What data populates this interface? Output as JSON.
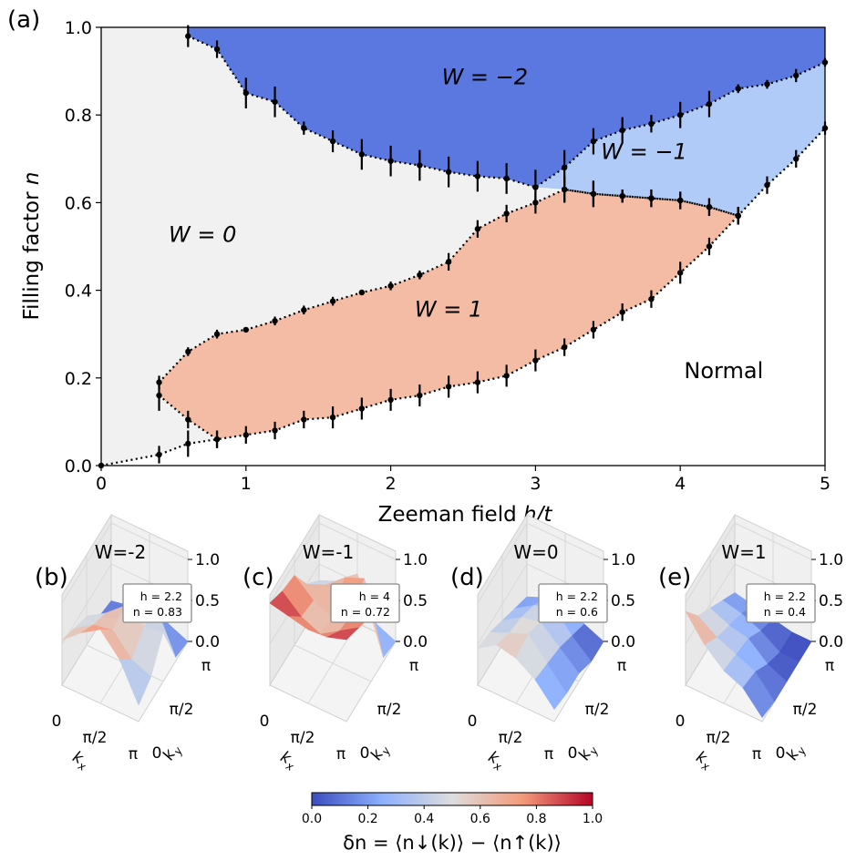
{
  "colors": {
    "w_minus2": "#5a78e0",
    "w_minus1": "#b0cbf8",
    "w_zero": "#f1f1f1",
    "w_one": "#f4bca4",
    "normal": "#ffffff",
    "cmap_low": "#3b4cc0",
    "cmap_mid": "#dddddd",
    "cmap_high": "#b40426"
  },
  "chart_data": [
    {
      "type": "scatter",
      "panel_label": "(a)",
      "xlabel": "Zeeman field h/t",
      "ylabel": "Filling factor n",
      "xlim": [
        0,
        5
      ],
      "ylim": [
        0.0,
        1.0
      ],
      "xticks": [
        "0",
        "1",
        "2",
        "3",
        "4",
        "5"
      ],
      "yticks": [
        "0.0",
        "0.2",
        "0.4",
        "0.6",
        "0.8",
        "1.0"
      ],
      "grid": false,
      "region_labels": [
        {
          "text": "W = −2",
          "x": 2.65,
          "y": 0.87
        },
        {
          "text": "W = −1",
          "x": 3.75,
          "y": 0.7
        },
        {
          "text": "W = 0",
          "x": 0.7,
          "y": 0.51
        },
        {
          "text": "W = 1",
          "x": 2.4,
          "y": 0.34
        },
        {
          "text": "Normal",
          "x": 4.3,
          "y": 0.2
        }
      ],
      "series": [
        {
          "x": [
            0.6,
            0.8,
            1.0,
            1.2,
            1.4,
            1.6,
            1.8,
            2.0,
            2.2,
            2.4,
            2.6,
            2.8,
            3.0,
            3.2,
            3.4,
            3.6,
            3.8,
            4.0,
            4.2,
            4.4,
            4.6,
            4.8,
            5.0
          ],
          "y": [
            0.98,
            0.95,
            0.85,
            0.83,
            0.77,
            0.74,
            0.71,
            0.695,
            0.685,
            0.67,
            0.66,
            0.655,
            0.635,
            0.68,
            0.74,
            0.765,
            0.78,
            0.8,
            0.825,
            0.86,
            0.87,
            0.89,
            0.92
          ],
          "err": [
            0.025,
            0.02,
            0.035,
            0.035,
            0.015,
            0.025,
            0.035,
            0.035,
            0.035,
            0.035,
            0.035,
            0.035,
            0.04,
            0.04,
            0.03,
            0.03,
            0.02,
            0.03,
            0.03,
            0.01,
            0.01,
            0.015,
            0.01
          ]
        },
        {
          "x": [
            3.2,
            3.4,
            3.6,
            3.8,
            4.0,
            4.2,
            4.4,
            4.6,
            4.8,
            5.0
          ],
          "y": [
            0.63,
            0.62,
            0.615,
            0.61,
            0.605,
            0.59,
            0.57,
            0.64,
            0.7,
            0.77
          ],
          "err": [
            0.03,
            0.03,
            0.015,
            0.02,
            0.02,
            0.02,
            0.02,
            0.02,
            0.02,
            0.015
          ]
        },
        {
          "x": [
            0.4,
            0.6,
            0.8,
            1.0,
            1.2,
            1.4,
            1.6,
            1.8,
            2.0,
            2.2,
            2.4,
            2.6,
            2.8,
            3.0,
            3.2,
            3.4,
            3.6,
            3.8,
            4.0,
            4.2,
            4.4
          ],
          "y": [
            0.19,
            0.26,
            0.3,
            0.31,
            0.33,
            0.355,
            0.375,
            0.395,
            0.41,
            0.435,
            0.465,
            0.54,
            0.575,
            0.6,
            0.63,
            0.62,
            0.615,
            0.61,
            0.605,
            0.59,
            0.57
          ],
          "err": [
            0.015,
            0.01,
            0.01,
            0.005,
            0.01,
            0.01,
            0.01,
            0.005,
            0.01,
            0.01,
            0.02,
            0.02,
            0.02,
            0.025,
            0.03,
            0.03,
            0.015,
            0.02,
            0.02,
            0.02,
            0.02
          ]
        },
        {
          "x": [
            0.4,
            0.6,
            0.8,
            1.0,
            1.2,
            1.4,
            1.6,
            1.8,
            2.0,
            2.2,
            2.4,
            2.6,
            2.8,
            3.0,
            3.2,
            3.4,
            3.6,
            3.8,
            4.0,
            4.2,
            4.4
          ],
          "y": [
            0.16,
            0.105,
            0.06,
            0.07,
            0.08,
            0.105,
            0.11,
            0.13,
            0.15,
            0.16,
            0.18,
            0.19,
            0.205,
            0.24,
            0.27,
            0.31,
            0.35,
            0.38,
            0.44,
            0.5,
            0.57
          ],
          "err": [
            0.035,
            0.02,
            0.02,
            0.02,
            0.02,
            0.02,
            0.025,
            0.025,
            0.025,
            0.025,
            0.025,
            0.025,
            0.025,
            0.025,
            0.02,
            0.02,
            0.02,
            0.02,
            0.025,
            0.02,
            0.02
          ]
        },
        {
          "x": [
            0.0,
            0.4,
            0.6,
            0.8
          ],
          "y": [
            0.0,
            0.025,
            0.05,
            0.06
          ],
          "err": [
            0.0,
            0.02,
            0.03,
            0.02
          ]
        }
      ]
    },
    {
      "type": "surface",
      "panel_label": "(b)",
      "title": "W=-2",
      "annotation": [
        "h = 2.2",
        "n = 0.83"
      ],
      "xlabel": "kx",
      "ylabel": "ky",
      "xticks": [
        "0",
        "π/2",
        "π"
      ],
      "yticks": [
        "0",
        "π/2",
        "π"
      ],
      "zticks": [
        "0.0",
        "0.5",
        "1.0"
      ],
      "zlim": [
        0.0,
        1.0
      ],
      "values": [
        [
          0.55,
          0.75,
          0.9,
          0.65,
          0.2
        ],
        [
          0.45,
          0.6,
          0.65,
          0.4,
          0.3
        ],
        [
          0.35,
          0.5,
          0.7,
          0.55,
          0.6
        ],
        [
          0.1,
          0.2,
          0.35,
          0.55,
          0.05
        ],
        [
          0.05,
          0.1,
          0.2,
          0.1,
          0.0
        ]
      ]
    },
    {
      "type": "surface",
      "panel_label": "(c)",
      "title": "W=-1",
      "annotation": [
        "h = 4",
        "n = 0.72"
      ],
      "xlabel": "kx",
      "ylabel": "ky",
      "xticks": [
        "0",
        "π/2",
        "π"
      ],
      "yticks": [
        "0",
        "π/2",
        "π"
      ],
      "zticks": [
        "0.0",
        "0.5",
        "1.0"
      ],
      "zlim": [
        0.0,
        1.0
      ],
      "values": [
        [
          1.0,
          0.95,
          0.9,
          0.92,
          1.0
        ],
        [
          0.9,
          0.7,
          0.6,
          0.75,
          0.9
        ],
        [
          0.85,
          0.65,
          0.55,
          0.7,
          0.8
        ],
        [
          0.5,
          0.6,
          0.8,
          0.9,
          0.05
        ],
        [
          0.3,
          0.4,
          0.6,
          0.1,
          0.0
        ]
      ]
    },
    {
      "type": "surface",
      "panel_label": "(d)",
      "title": "W=0",
      "annotation": [
        "h = 2.2",
        "n = 0.6"
      ],
      "xlabel": "kx",
      "ylabel": "ky",
      "xticks": [
        "0",
        "π/2",
        "π"
      ],
      "yticks": [
        "0",
        "π/2",
        "π"
      ],
      "zticks": [
        "0.0",
        "0.5",
        "1.0"
      ],
      "zlim": [
        0.0,
        1.0
      ],
      "values": [
        [
          0.45,
          0.6,
          0.55,
          0.4,
          0.15
        ],
        [
          0.4,
          0.5,
          0.6,
          0.35,
          0.1
        ],
        [
          0.3,
          0.45,
          0.5,
          0.3,
          0.1
        ],
        [
          0.2,
          0.35,
          0.45,
          0.2,
          0.0
        ],
        [
          0.1,
          0.2,
          0.25,
          0.1,
          0.0
        ]
      ]
    },
    {
      "type": "surface",
      "panel_label": "(e)",
      "title": "W=1",
      "annotation": [
        "h = 2.2",
        "n = 0.4"
      ],
      "xlabel": "kx",
      "ylabel": "ky",
      "xticks": [
        "0",
        "π/2",
        "π"
      ],
      "yticks": [
        "0",
        "π/2",
        "π"
      ],
      "zticks": [
        "0.0",
        "0.5",
        "1.0"
      ],
      "zlim": [
        0.0,
        1.0
      ],
      "values": [
        [
          0.9,
          0.6,
          0.4,
          0.3,
          0.05
        ],
        [
          0.6,
          0.45,
          0.35,
          0.25,
          0.0
        ],
        [
          0.45,
          0.35,
          0.3,
          0.1,
          0.0
        ],
        [
          0.3,
          0.25,
          0.15,
          0.0,
          0.0
        ],
        [
          0.15,
          0.1,
          0.05,
          0.0,
          0.0
        ]
      ]
    }
  ],
  "colorbar": {
    "ticks": [
      "0.0",
      "0.2",
      "0.4",
      "0.6",
      "0.8",
      "1.0"
    ],
    "label": "δn = ⟨n↓(k)⟩ − ⟨n↑(k)⟩",
    "range": [
      0.0,
      1.0
    ]
  }
}
